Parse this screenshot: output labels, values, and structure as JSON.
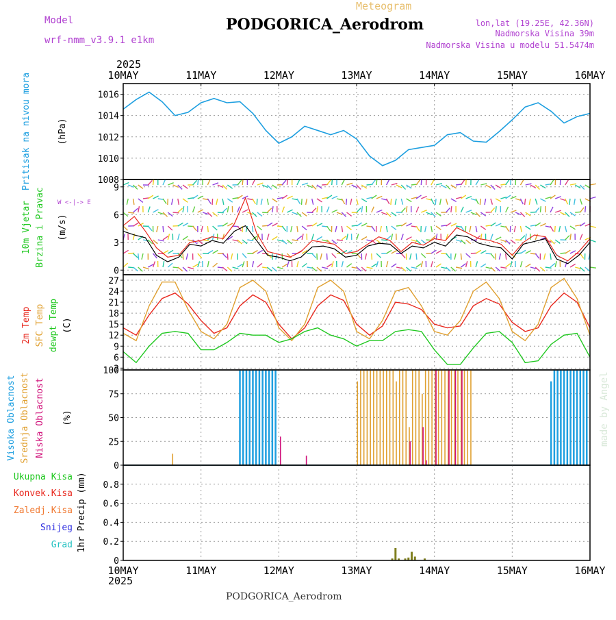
{
  "header": {
    "title": "PODGORICA_Aerodrom",
    "meteogram": "Meteogram",
    "model_label": "Model",
    "model_name": "wrf-nmm_v3.9.1 e1km",
    "lonlat": "lon,lat (19.25E, 42.36N)",
    "altitude": "Nadmorska Visina 39m",
    "model_altitude": "Nadmorska Visina u modelu 51.5474m",
    "year_top": "2025",
    "year_bottom": "2025",
    "footer": "PODGORICA_Aerodrom",
    "watermark": "made by Angel"
  },
  "colors": {
    "pressure": "#1e9fe0",
    "wind_speed": "#000000",
    "wind_gust": "#e8281e",
    "temp_2m": "#e8281e",
    "temp_sfc": "#e0a030",
    "dewpoint": "#20c820",
    "cloud_high": "#1e9fe0",
    "cloud_mid": "#e0a030",
    "cloud_low": "#d0107a",
    "precip": "#808020"
  },
  "chart_data": [
    {
      "type": "line",
      "panel": "pressure",
      "title": "",
      "ylabel": [
        "Pritisak na nivou mora",
        "(hPa)"
      ],
      "ylim": [
        1008,
        1017
      ],
      "yticks": [
        1008,
        1010,
        1012,
        1014,
        1016
      ],
      "x_labels": [
        "10MAY",
        "11MAY",
        "12MAY",
        "13MAY",
        "14MAY",
        "15MAY",
        "16MAY"
      ],
      "x_hours": [
        0,
        4,
        8,
        12,
        16,
        20,
        24,
        28,
        32,
        36,
        40,
        44,
        48,
        52,
        56,
        60,
        64,
        68,
        72,
        76,
        80,
        84,
        88,
        92,
        96,
        100,
        104,
        108,
        112,
        116,
        120,
        124,
        128,
        132,
        136,
        140,
        144
      ],
      "series": [
        {
          "values": [
            1014.6,
            1015.5,
            1016.2,
            1015.3,
            1014.0,
            1014.3,
            1015.2,
            1015.6,
            1015.2,
            1015.3,
            1014.2,
            1012.6,
            1011.4,
            1012.0,
            1013.0,
            1012.6,
            1012.2,
            1012.6,
            1011.8,
            1010.2,
            1009.3,
            1009.8,
            1010.8,
            1011.0,
            1011.2,
            1012.2,
            1012.4,
            1011.6,
            1011.5,
            1012.5,
            1013.6,
            1014.8,
            1015.2,
            1014.4,
            1013.3,
            1013.9,
            1014.2
          ]
        }
      ]
    },
    {
      "type": "line",
      "panel": "wind",
      "title": "",
      "ylabel": [
        "10m Vjetar",
        "Brzina i Pravac",
        "(m/s)"
      ],
      "compass": "W <-|-> E",
      "ylim": [
        -0.5,
        9.8
      ],
      "yticks": [
        0,
        3,
        6,
        9
      ],
      "series": [
        {
          "name_hidden": "speed",
          "values": [
            4.2,
            3.8,
            3.5,
            1.6,
            0.9,
            1.4,
            2.8,
            2.6,
            3.2,
            2.9,
            4.2,
            4.8,
            3.2,
            1.6,
            1.4,
            1.0,
            1.4,
            2.5,
            2.6,
            2.3,
            1.4,
            1.6,
            2.6,
            2.9,
            2.8,
            1.8,
            2.6,
            2.4,
            3.0,
            2.6,
            3.8,
            3.6,
            2.9,
            2.6,
            2.4,
            1.2,
            2.8,
            3.1,
            3.4,
            1.2,
            0.7,
            1.6,
            3.0
          ]
        },
        {
          "name_hidden": "gust",
          "values": [
            4.8,
            5.8,
            4.2,
            2.4,
            1.4,
            1.6,
            3.0,
            3.2,
            3.6,
            3.4,
            5.0,
            7.8,
            4.0,
            2.0,
            1.7,
            1.4,
            2.0,
            3.2,
            3.0,
            2.8,
            1.8,
            2.0,
            2.8,
            3.6,
            3.2,
            2.0,
            3.0,
            2.7,
            3.4,
            3.2,
            4.6,
            4.0,
            3.4,
            3.2,
            2.8,
            1.6,
            3.0,
            3.8,
            3.6,
            1.6,
            1.0,
            2.0,
            3.4
          ]
        }
      ]
    },
    {
      "type": "line",
      "panel": "temperature",
      "title": "",
      "ylabel": [
        "2m Temp",
        "SFC Temp",
        "dewpt Temp",
        "(C)"
      ],
      "ylim": [
        2.5,
        28.5
      ],
      "yticks": [
        3,
        6,
        9,
        12,
        15,
        18,
        21,
        24,
        27
      ],
      "series": [
        {
          "name": "2m Temp",
          "values": [
            14.0,
            12.0,
            17.5,
            22.0,
            23.5,
            20.5,
            16.0,
            12.5,
            14.0,
            20.0,
            23.0,
            21.0,
            15.0,
            11.0,
            14.0,
            20.0,
            23.0,
            21.5,
            15.0,
            12.0,
            14.5,
            21.0,
            20.5,
            19.0,
            15.0,
            14.0,
            14.5,
            20.0,
            22.0,
            20.5,
            15.5,
            13.0,
            14.0,
            20.0,
            23.5,
            21.0,
            14.0
          ]
        },
        {
          "name": "SFC Temp",
          "values": [
            12.5,
            10.5,
            20.0,
            26.5,
            26.5,
            19.0,
            13.0,
            11.0,
            15.0,
            25.0,
            27.0,
            24.0,
            14.0,
            10.5,
            15.0,
            25.0,
            27.0,
            24.0,
            13.0,
            11.0,
            16.0,
            24.0,
            25.0,
            20.0,
            13.0,
            12.0,
            16.0,
            24.0,
            26.5,
            22.0,
            13.0,
            10.5,
            15.0,
            25.0,
            27.5,
            22.0,
            12.0
          ]
        },
        {
          "name": "dewpt Temp",
          "values": [
            7.5,
            4.5,
            9.0,
            12.5,
            13.0,
            12.5,
            8.0,
            8.0,
            10.0,
            12.5,
            12.0,
            12.0,
            10.0,
            11.0,
            13.0,
            14.0,
            12.0,
            11.0,
            9.0,
            10.5,
            10.5,
            13.0,
            13.5,
            13.0,
            8.0,
            4.0,
            4.0,
            8.5,
            12.5,
            13.0,
            10.0,
            4.5,
            5.0,
            9.5,
            12.0,
            12.5,
            6.0
          ]
        }
      ],
      "x_hours": [
        0,
        4,
        8,
        12,
        16,
        20,
        24,
        28,
        32,
        36,
        40,
        44,
        48,
        52,
        56,
        60,
        64,
        68,
        72,
        76,
        80,
        84,
        88,
        92,
        96,
        100,
        104,
        108,
        112,
        116,
        120,
        124,
        128,
        132,
        136,
        140,
        144
      ]
    },
    {
      "type": "bar",
      "panel": "clouds",
      "title": "",
      "ylabel": [
        "Visoka Oblacnost",
        "Srednja Oblacnost",
        "Niska Oblacnost",
        "(%)"
      ],
      "ylim": [
        0,
        100
      ],
      "yticks": [
        0,
        25,
        50,
        75,
        100
      ],
      "series": [
        {
          "name": "Visoka Oblacnost",
          "x_hours": [
            36,
            37,
            38,
            39,
            40,
            41,
            42,
            43,
            44,
            45,
            46,
            47,
            132,
            133,
            134,
            135,
            136,
            137,
            138,
            139,
            140,
            141,
            142,
            143
          ],
          "values": [
            100,
            100,
            100,
            100,
            100,
            100,
            100,
            100,
            100,
            100,
            100,
            100,
            88,
            100,
            100,
            100,
            100,
            100,
            100,
            100,
            100,
            100,
            100,
            100
          ]
        },
        {
          "name": "Srednja Oblacnost",
          "x_hours": [
            15,
            72,
            73,
            74,
            75,
            76,
            77,
            78,
            79,
            80,
            81,
            82,
            83,
            84,
            85,
            86,
            87,
            88,
            89,
            90,
            91,
            92,
            93,
            94,
            95,
            96,
            97,
            98,
            99,
            100,
            101,
            102,
            103,
            104,
            105,
            106,
            107
          ],
          "values": [
            12,
            88,
            100,
            100,
            100,
            100,
            100,
            100,
            100,
            100,
            100,
            100,
            100,
            88,
            100,
            100,
            100,
            40,
            100,
            100,
            100,
            75,
            100,
            100,
            100,
            100,
            100,
            100,
            100,
            100,
            100,
            100,
            100,
            100,
            100,
            100,
            100
          ]
        },
        {
          "name": "Niska Oblacnost",
          "x_hours": [
            48,
            56,
            88,
            92,
            93,
            96,
            100,
            102,
            104
          ],
          "values": [
            30,
            10,
            25,
            40,
            5,
            100,
            100,
            100,
            100
          ]
        }
      ]
    },
    {
      "type": "bar",
      "panel": "precipitation",
      "title": "",
      "ylabel": [
        "1hr Precip (mm)"
      ],
      "legend_labels": [
        "Ukupna Kisa",
        "Konvek.Kisa",
        "Zaledj.Kisa",
        "Snijeg",
        "Grad"
      ],
      "ylim": [
        0,
        1.0
      ],
      "yticks": [
        0,
        0.2,
        0.4,
        0.6,
        0.8
      ],
      "series": [
        {
          "name": "Ukupna Kisa",
          "x_hours": [
            83,
            84,
            85,
            87,
            88,
            89,
            90,
            93
          ],
          "values": [
            0.02,
            0.13,
            0.02,
            0.02,
            0.03,
            0.09,
            0.04,
            0.02
          ]
        }
      ]
    }
  ]
}
